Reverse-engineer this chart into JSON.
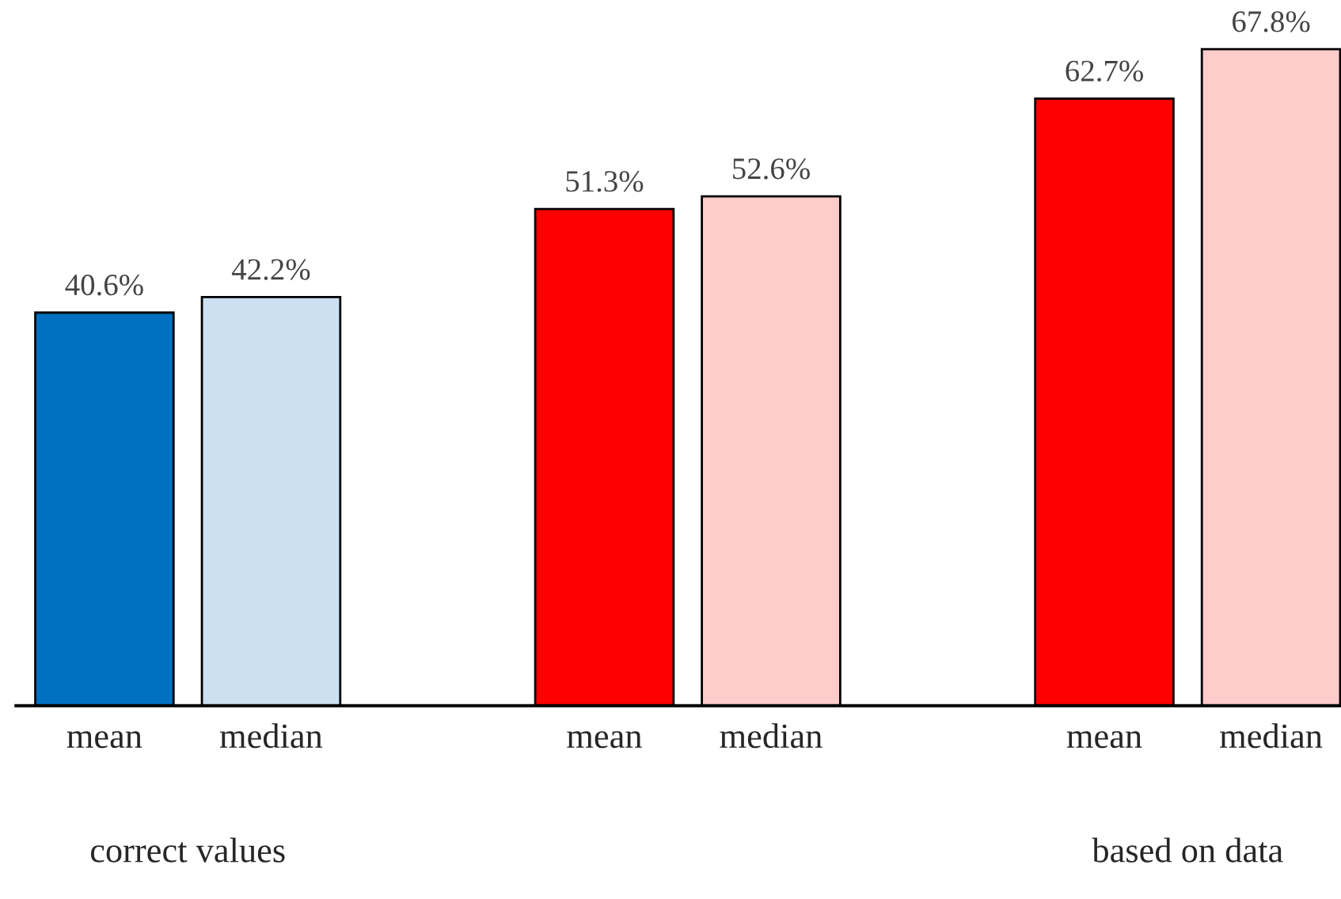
{
  "chart_data": {
    "type": "bar",
    "categories": [
      "mean",
      "median",
      null,
      "mean",
      "median",
      null,
      "mean",
      "median"
    ],
    "values": [
      40.6,
      42.2,
      null,
      51.3,
      52.6,
      null,
      62.7,
      67.8
    ],
    "colors": [
      "#0070c0",
      "#cce0f2",
      "#ffffff",
      "#ff0000",
      "#ffcccc",
      "#ffffff",
      "#ff0000",
      "#ffcccc"
    ],
    "value_labels": [
      "40.6%",
      "42.2%",
      null,
      "51.3%",
      "52.6%",
      null,
      "62.7%",
      "67.8%"
    ],
    "annotations": [
      "correct values",
      "based on data"
    ],
    "grid": false,
    "legend": false
  }
}
